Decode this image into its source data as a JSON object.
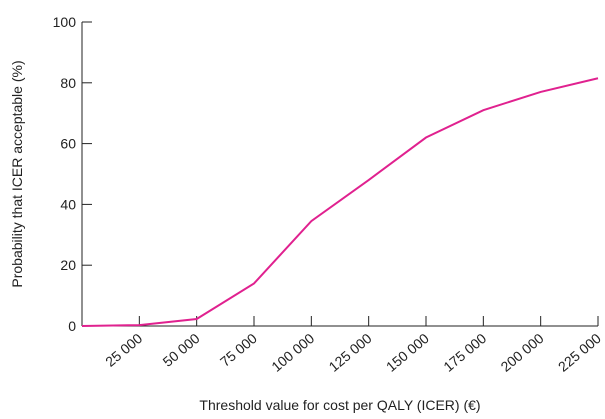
{
  "chart_data": {
    "type": "line",
    "x_label": "Threshold value for cost per QALY (ICER) (€)",
    "y_label": "Probability that ICER acceptable (%)",
    "x": [
      0,
      25000,
      50000,
      75000,
      100000,
      125000,
      150000,
      175000,
      200000,
      225000
    ],
    "series": [
      {
        "name": "Probability",
        "color": "#e0218f",
        "values": [
          0,
          0.3,
          2.3,
          14,
          34.5,
          48,
          62,
          71,
          77,
          81.5
        ]
      }
    ],
    "xlim": [
      0,
      225000
    ],
    "xticks": [
      {
        "value": 25000,
        "label": "25 000"
      },
      {
        "value": 50000,
        "label": "50 000"
      },
      {
        "value": 75000,
        "label": "75 000"
      },
      {
        "value": 100000,
        "label": "100 000"
      },
      {
        "value": 125000,
        "label": "125 000"
      },
      {
        "value": 150000,
        "label": "150 000"
      },
      {
        "value": 175000,
        "label": "175 000"
      },
      {
        "value": 200000,
        "label": "200 000"
      },
      {
        "value": 225000,
        "label": "225 000"
      }
    ],
    "ylim": [
      0,
      100
    ],
    "yticks": [
      0,
      20,
      40,
      60,
      80,
      100
    ]
  }
}
